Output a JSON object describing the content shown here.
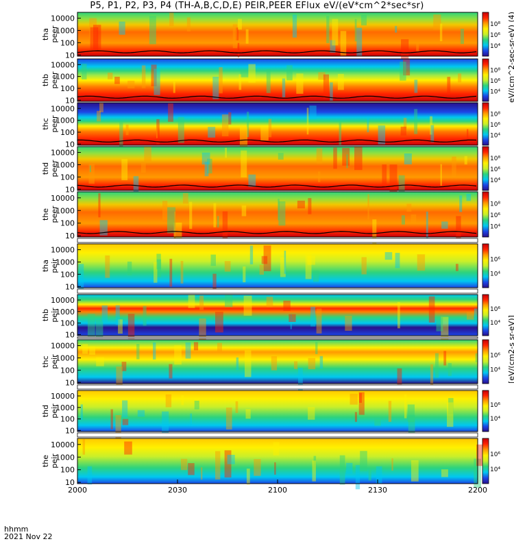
{
  "figure": {
    "title": "P5, P1, P2, P3, P4 (TH-A,B,C,D,E) PEIR,PEER EFlux eV/(eV*cm^2*sec*sr)",
    "time_label": "hhmm",
    "date_label": "2021 Nov 22",
    "colorbar_titles": [
      "eV/(cm^2-sec-sr-eV) (4)",
      "[eV/(cm2-s sr-eV)]"
    ]
  },
  "chart_data": {
    "type": "heatmap",
    "x_ticks": [
      "2000",
      "2030",
      "2100",
      "2130",
      "2200"
    ],
    "x_range": [
      "2000",
      "2200"
    ],
    "y_scale": "log",
    "y_ticks": [
      "10",
      "100",
      "1000",
      "10000"
    ],
    "colormap": [
      "#2a0f8a",
      "#1c46e6",
      "#00c8f0",
      "#2ed37c",
      "#c9ef2a",
      "#fff000",
      "#ff9a00",
      "#ff2400",
      "#c4000a"
    ],
    "panels": [
      {
        "label": [
          "tha",
          "peer"
        ],
        "colorbar": [
          "10⁴",
          "10⁶",
          "10⁸"
        ]
      },
      {
        "label": [
          "thb",
          "peer"
        ],
        "colorbar": [
          "10⁴",
          "10⁶",
          "10⁸"
        ]
      },
      {
        "label": [
          "thc",
          "peer"
        ],
        "colorbar": [
          "10⁴",
          "10⁶",
          "10⁸"
        ]
      },
      {
        "label": [
          "thd",
          "peer"
        ],
        "colorbar": [
          "10⁴",
          "10⁶",
          "10⁸"
        ]
      },
      {
        "label": [
          "the",
          "peer"
        ],
        "colorbar": [
          "10⁴",
          "10⁶",
          "10⁸"
        ]
      },
      {
        "label": [
          "tha",
          "peir"
        ],
        "colorbar": [
          "10⁴",
          "10⁶"
        ]
      },
      {
        "label": [
          "thb",
          "peir"
        ],
        "colorbar": [
          "10⁴",
          "10⁶"
        ]
      },
      {
        "label": [
          "thc",
          "peir"
        ],
        "colorbar": [
          "10⁴",
          "10⁶"
        ]
      },
      {
        "label": [
          "thd",
          "peir"
        ],
        "colorbar": [
          "10⁴",
          "10⁶"
        ]
      },
      {
        "label": [
          "the",
          "peir"
        ],
        "colorbar": [
          "10⁴",
          "10⁶"
        ]
      }
    ]
  }
}
